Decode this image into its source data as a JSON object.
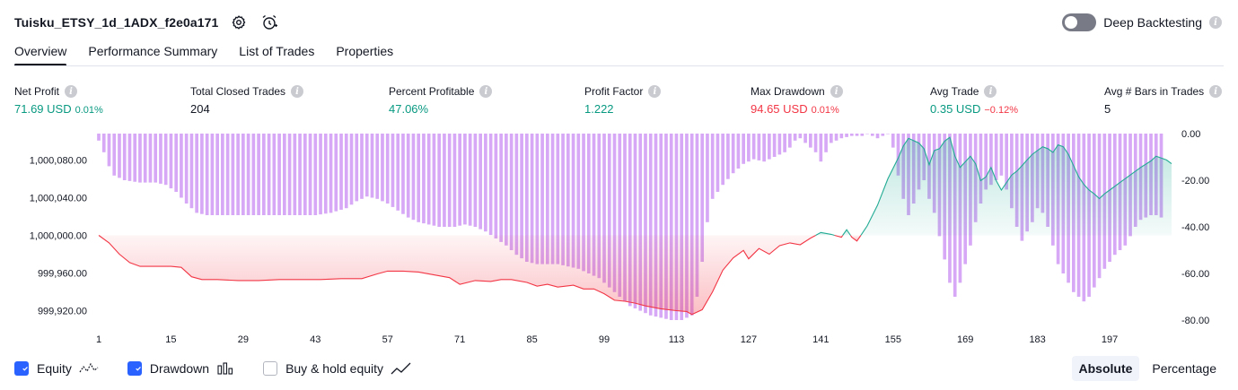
{
  "header": {
    "title": "Tuisku_ETSY_1d_1ADX_f2e0a171",
    "deep_backtesting_label": "Deep Backtesting",
    "icons": [
      "settings-icon",
      "alarm-add-icon",
      "toggle-switch",
      "info-icon"
    ]
  },
  "tabs": [
    {
      "label": "Overview",
      "active": true
    },
    {
      "label": "Performance Summary",
      "active": false
    },
    {
      "label": "List of Trades",
      "active": false
    },
    {
      "label": "Properties",
      "active": false
    }
  ],
  "metrics": [
    {
      "label": "Net Profit",
      "value": "71.69 USD",
      "pct": "0.01%",
      "color": "green",
      "pct_color": "green"
    },
    {
      "label": "Total Closed Trades",
      "value": "204",
      "pct": "",
      "color": "",
      "pct_color": ""
    },
    {
      "label": "Percent Profitable",
      "value": "47.06%",
      "pct": "",
      "color": "green",
      "pct_color": ""
    },
    {
      "label": "Profit Factor",
      "value": "1.222",
      "pct": "",
      "color": "green",
      "pct_color": ""
    },
    {
      "label": "Max Drawdown",
      "value": "94.65 USD",
      "pct": "0.01%",
      "color": "red",
      "pct_color": "red"
    },
    {
      "label": "Avg Trade",
      "value": "0.35 USD",
      "pct": "−0.12%",
      "color": "green",
      "pct_color": "red"
    },
    {
      "label": "Avg # Bars in Trades",
      "value": "5",
      "pct": "",
      "color": "",
      "pct_color": ""
    }
  ],
  "chart_data": {
    "type": "line",
    "x_ticks": [
      1,
      15,
      29,
      43,
      57,
      71,
      85,
      99,
      113,
      127,
      141,
      155,
      169,
      183,
      197
    ],
    "x_range": [
      1,
      204
    ],
    "left_axis": {
      "ticks": [
        "1,000,080.00",
        "1,000,040.00",
        "1,000,000.00",
        "999,960.00",
        "999,920.00"
      ],
      "values": [
        1000080,
        1000040,
        1000000,
        999960,
        999920
      ],
      "range": [
        999910,
        1000108
      ]
    },
    "right_axis": {
      "ticks": [
        "0.00",
        "-20.00",
        "-40.00",
        "-60.00",
        "-80.00"
      ],
      "values": [
        0,
        -20,
        -40,
        -60,
        -80
      ],
      "range": [
        -80,
        0
      ]
    },
    "baseline": 1000000,
    "series": [
      {
        "name": "Equity",
        "axis": "left",
        "points": [
          [
            1,
            1000000
          ],
          [
            3,
            999992
          ],
          [
            5,
            999980
          ],
          [
            7,
            999971
          ],
          [
            9,
            999967
          ],
          [
            11,
            999967
          ],
          [
            13,
            999967
          ],
          [
            15,
            999967
          ],
          [
            17,
            999966
          ],
          [
            19,
            999956
          ],
          [
            21,
            999953
          ],
          [
            24,
            999953
          ],
          [
            28,
            999952
          ],
          [
            32,
            999952
          ],
          [
            36,
            999953
          ],
          [
            40,
            999953
          ],
          [
            44,
            999953
          ],
          [
            48,
            999954
          ],
          [
            52,
            999954
          ],
          [
            55,
            999959
          ],
          [
            57,
            999962
          ],
          [
            60,
            999962
          ],
          [
            63,
            999961
          ],
          [
            66,
            999958
          ],
          [
            69,
            999955
          ],
          [
            71,
            999948
          ],
          [
            74,
            999952
          ],
          [
            77,
            999951
          ],
          [
            79,
            999953
          ],
          [
            81,
            999953
          ],
          [
            84,
            999950
          ],
          [
            86,
            999946
          ],
          [
            88,
            999948
          ],
          [
            90,
            999945
          ],
          [
            93,
            999947
          ],
          [
            95,
            999943
          ],
          [
            97,
            999943
          ],
          [
            99,
            999938
          ],
          [
            101,
            999931
          ],
          [
            103,
            999930
          ],
          [
            105,
            999928
          ],
          [
            107,
            999925
          ],
          [
            110,
            999922
          ],
          [
            113,
            999920
          ],
          [
            115,
            999919
          ],
          [
            116,
            999916
          ],
          [
            118,
            999921
          ],
          [
            120,
            999940
          ],
          [
            122,
            999963
          ],
          [
            124,
            999976
          ],
          [
            126,
            999984
          ],
          [
            127,
            999975
          ],
          [
            129,
            999986
          ],
          [
            131,
            999980
          ],
          [
            133,
            999989
          ],
          [
            135,
            999992
          ],
          [
            137,
            999990
          ],
          [
            139,
            999997
          ],
          [
            141,
            1000003
          ],
          [
            143,
            1000001
          ],
          [
            145,
            999998
          ],
          [
            146,
            1000006
          ],
          [
            147,
            999998
          ],
          [
            148,
            999994
          ],
          [
            149,
            1000002
          ],
          [
            150,
            1000010
          ],
          [
            152,
            1000032
          ],
          [
            154,
            1000060
          ],
          [
            156,
            1000082
          ],
          [
            157,
            1000095
          ],
          [
            158,
            1000103
          ],
          [
            160,
            1000098
          ],
          [
            161,
            1000092
          ],
          [
            162,
            1000075
          ],
          [
            163,
            1000090
          ],
          [
            164,
            1000092
          ],
          [
            165,
            1000100
          ],
          [
            166,
            1000104
          ],
          [
            167,
            1000084
          ],
          [
            168,
            1000072
          ],
          [
            169,
            1000078
          ],
          [
            170,
            1000084
          ],
          [
            171,
            1000076
          ],
          [
            172,
            1000058
          ],
          [
            173,
            1000062
          ],
          [
            174,
            1000072
          ],
          [
            175,
            1000058
          ],
          [
            176,
            1000048
          ],
          [
            177,
            1000056
          ],
          [
            178,
            1000064
          ],
          [
            179,
            1000068
          ],
          [
            180,
            1000074
          ],
          [
            181,
            1000080
          ],
          [
            182,
            1000086
          ],
          [
            183,
            1000090
          ],
          [
            184,
            1000094
          ],
          [
            185,
            1000092
          ],
          [
            186,
            1000088
          ],
          [
            187,
            1000096
          ],
          [
            188,
            1000094
          ],
          [
            189,
            1000086
          ],
          [
            190,
            1000074
          ],
          [
            191,
            1000062
          ],
          [
            192,
            1000054
          ],
          [
            193,
            1000048
          ],
          [
            194,
            1000044
          ],
          [
            195,
            1000039
          ],
          [
            196,
            1000044
          ],
          [
            197,
            1000048
          ],
          [
            199,
            1000056
          ],
          [
            201,
            1000064
          ],
          [
            203,
            1000072
          ],
          [
            205,
            1000079
          ],
          [
            206,
            1000084
          ],
          [
            208,
            1000080
          ],
          [
            209,
            1000076
          ]
        ]
      },
      {
        "name": "Drawdown",
        "axis": "right",
        "points": [
          [
            1,
            -3
          ],
          [
            2,
            -8
          ],
          [
            3,
            -14
          ],
          [
            4,
            -18
          ],
          [
            6,
            -20
          ],
          [
            9,
            -21
          ],
          [
            12,
            -21
          ],
          [
            14,
            -22
          ],
          [
            16,
            -25
          ],
          [
            18,
            -30
          ],
          [
            20,
            -34
          ],
          [
            22,
            -35
          ],
          [
            25,
            -35
          ],
          [
            28,
            -35
          ],
          [
            31,
            -35
          ],
          [
            34,
            -35
          ],
          [
            37,
            -35
          ],
          [
            40,
            -35
          ],
          [
            43,
            -35
          ],
          [
            46,
            -34
          ],
          [
            49,
            -32
          ],
          [
            51,
            -29
          ],
          [
            53,
            -27
          ],
          [
            55,
            -28
          ],
          [
            57,
            -30
          ],
          [
            59,
            -33
          ],
          [
            61,
            -36
          ],
          [
            63,
            -38
          ],
          [
            65,
            -39
          ],
          [
            67,
            -40
          ],
          [
            70,
            -40
          ],
          [
            72,
            -39
          ],
          [
            74,
            -40
          ],
          [
            76,
            -42
          ],
          [
            78,
            -45
          ],
          [
            80,
            -48
          ],
          [
            82,
            -52
          ],
          [
            84,
            -55
          ],
          [
            86,
            -56
          ],
          [
            88,
            -56
          ],
          [
            90,
            -56
          ],
          [
            92,
            -57
          ],
          [
            94,
            -58
          ],
          [
            96,
            -60
          ],
          [
            98,
            -62
          ],
          [
            100,
            -66
          ],
          [
            102,
            -70
          ],
          [
            104,
            -74
          ],
          [
            106,
            -76
          ],
          [
            108,
            -78
          ],
          [
            110,
            -79
          ],
          [
            112,
            -80
          ],
          [
            114,
            -80
          ],
          [
            116,
            -78
          ],
          [
            117,
            -70
          ],
          [
            118,
            -55
          ],
          [
            119,
            -38
          ],
          [
            120,
            -28
          ],
          [
            122,
            -22
          ],
          [
            124,
            -17
          ],
          [
            126,
            -13
          ],
          [
            128,
            -11
          ],
          [
            130,
            -12
          ],
          [
            132,
            -10
          ],
          [
            134,
            -8
          ],
          [
            135,
            -6
          ],
          [
            136,
            -3
          ],
          [
            137,
            -2
          ],
          [
            138,
            -4
          ],
          [
            139,
            -6
          ],
          [
            140,
            -8
          ],
          [
            141,
            -12
          ],
          [
            142,
            -8
          ],
          [
            143,
            -4
          ],
          [
            145,
            -2
          ],
          [
            147,
            -1
          ],
          [
            149,
            -1
          ],
          [
            150,
            0
          ],
          [
            151,
            -1
          ],
          [
            152,
            -2
          ],
          [
            153,
            -1
          ],
          [
            154,
            0
          ],
          [
            155,
            -6
          ],
          [
            156,
            -18
          ],
          [
            157,
            -28
          ],
          [
            158,
            -35
          ],
          [
            159,
            -30
          ],
          [
            160,
            -24
          ],
          [
            161,
            -20
          ],
          [
            162,
            -28
          ],
          [
            163,
            -34
          ],
          [
            164,
            -44
          ],
          [
            165,
            -54
          ],
          [
            166,
            -64
          ],
          [
            167,
            -70
          ],
          [
            168,
            -64
          ],
          [
            169,
            -56
          ],
          [
            170,
            -48
          ],
          [
            171,
            -38
          ],
          [
            172,
            -30
          ],
          [
            173,
            -24
          ],
          [
            174,
            -22
          ],
          [
            175,
            -20
          ],
          [
            176,
            -18
          ],
          [
            177,
            -24
          ],
          [
            178,
            -32
          ],
          [
            179,
            -40
          ],
          [
            180,
            -46
          ],
          [
            181,
            -42
          ],
          [
            182,
            -38
          ],
          [
            183,
            -32
          ],
          [
            184,
            -34
          ],
          [
            185,
            -40
          ],
          [
            186,
            -48
          ],
          [
            187,
            -56
          ],
          [
            188,
            -60
          ],
          [
            189,
            -64
          ],
          [
            190,
            -68
          ],
          [
            191,
            -70
          ],
          [
            192,
            -72
          ],
          [
            193,
            -70
          ],
          [
            194,
            -66
          ],
          [
            195,
            -62
          ],
          [
            196,
            -58
          ],
          [
            197,
            -55
          ],
          [
            198,
            -52
          ],
          [
            199,
            -50
          ],
          [
            200,
            -48
          ],
          [
            201,
            -44
          ],
          [
            202,
            -40
          ],
          [
            203,
            -37
          ],
          [
            204,
            -36
          ],
          [
            205,
            -35
          ],
          [
            206,
            -35
          ],
          [
            207,
            -36
          ]
        ]
      }
    ],
    "colors": {
      "equity_negative": "#f23645",
      "equity_positive": "#22ab94",
      "drawdown": "#d6a8f5"
    }
  },
  "legend": {
    "equity_label": "Equity",
    "drawdown_label": "Drawdown",
    "buy_hold_label": "Buy & hold equity",
    "equity_checked": true,
    "drawdown_checked": true,
    "buy_hold_checked": false
  },
  "modes": {
    "absolute_label": "Absolute",
    "percentage_label": "Percentage",
    "active": "absolute"
  }
}
